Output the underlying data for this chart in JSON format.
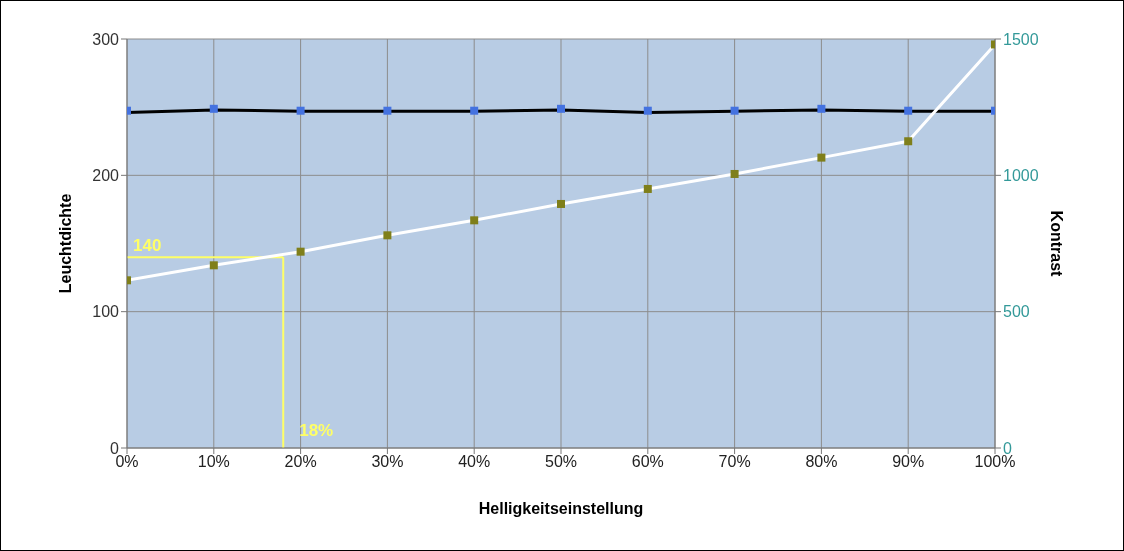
{
  "chart_data": {
    "type": "line",
    "xlabel": "Helligkeitseinstellung",
    "ylabel": "Leuchtdichte",
    "y2label": "Kontrast",
    "x": [
      0,
      10,
      20,
      30,
      40,
      50,
      60,
      70,
      80,
      90,
      100
    ],
    "xlim": [
      0,
      100
    ],
    "xticks": [
      {
        "value": 0,
        "label": "0%"
      },
      {
        "value": 10,
        "label": "10%"
      },
      {
        "value": 20,
        "label": "20%"
      },
      {
        "value": 30,
        "label": "30%"
      },
      {
        "value": 40,
        "label": "40%"
      },
      {
        "value": 50,
        "label": "50%"
      },
      {
        "value": 60,
        "label": "60%"
      },
      {
        "value": 70,
        "label": "70%"
      },
      {
        "value": 80,
        "label": "80%"
      },
      {
        "value": 90,
        "label": "90%"
      },
      {
        "value": 100,
        "label": "100%"
      }
    ],
    "ylim": [
      0,
      300
    ],
    "yticks": [
      0,
      100,
      200,
      300
    ],
    "y2lim": [
      0,
      1500
    ],
    "y2ticks": [
      0,
      500,
      1000,
      1500
    ],
    "series": [
      {
        "color": "#000000",
        "marker": "none",
        "axis": "y2",
        "values": [
          1230,
          1240,
          1235,
          1235,
          1235,
          1240,
          1230,
          1235,
          1240,
          1235,
          1235
        ]
      },
      {
        "type": "scatter",
        "color": "#4472e0",
        "axis": "y2",
        "values": [
          1237,
          1244,
          1237,
          1237,
          1237,
          1244,
          1237,
          1237,
          1244,
          1237,
          1237
        ]
      },
      {
        "color": "#ffffff",
        "marker": "none",
        "values": [
          123,
          134,
          144,
          156,
          167,
          179,
          190,
          201,
          213,
          225,
          296
        ]
      },
      {
        "type": "scatter",
        "color": "#7f7f1a",
        "values": [
          123,
          134,
          144,
          156,
          167,
          179,
          190,
          201,
          213,
          225,
          296
        ]
      }
    ],
    "ref_lines": [
      {
        "axis": "y",
        "value": 140,
        "label": "140",
        "color": "#ffff66"
      },
      {
        "axis": "x",
        "value": 18,
        "label": "18%",
        "color": "#ffff66"
      }
    ],
    "grid": true,
    "marker": "square",
    "legend": false
  }
}
